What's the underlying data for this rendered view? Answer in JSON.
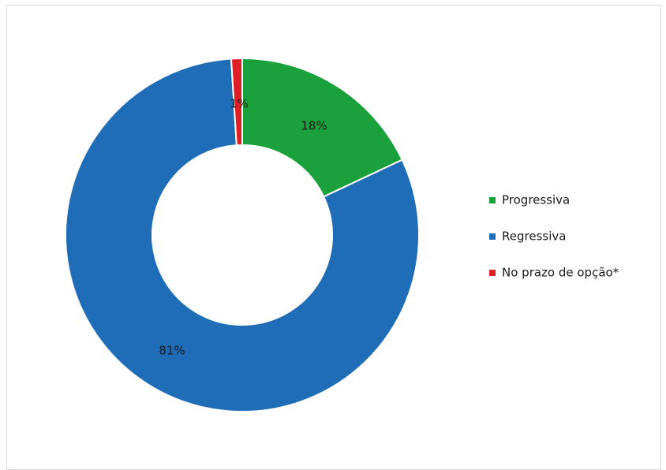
{
  "chart_data": {
    "type": "pie",
    "variant": "donut",
    "categories": [
      "Progressiva",
      "Regressiva",
      "No prazo de opção*"
    ],
    "values": [
      18,
      81,
      1
    ],
    "labels": [
      "18%",
      "81%",
      "1%"
    ],
    "colors": [
      "#1aa13c",
      "#1f6db7",
      "#e01e26"
    ],
    "legend_position": "right",
    "title": ""
  }
}
